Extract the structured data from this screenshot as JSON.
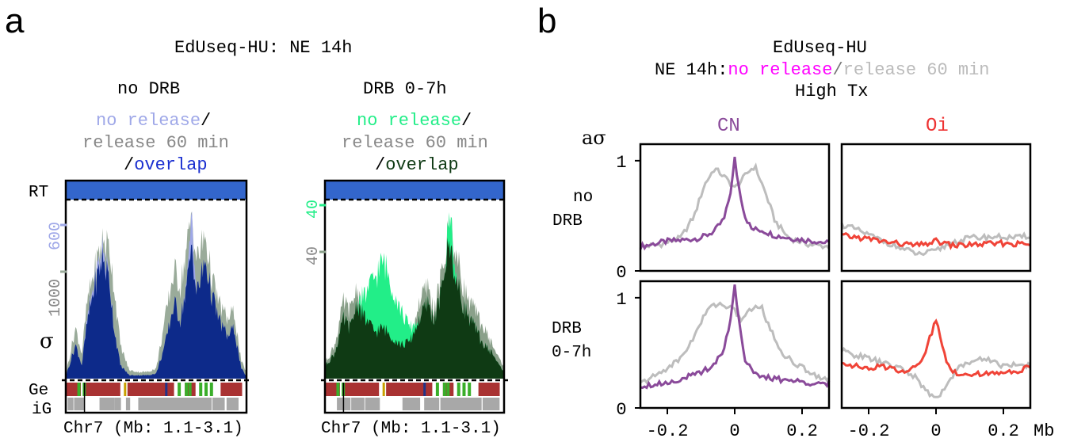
{
  "panel_a": {
    "letter": "a",
    "title": "EdUseq-HU: NE 14h",
    "left": {
      "condition": "no DRB",
      "legend_no_release": "no release",
      "legend_sep1": "/",
      "legend_release": "release 60 min",
      "legend_sep2": "/",
      "legend_overlap": "overlap",
      "tick_top": "600",
      "tick_bottom": "1000"
    },
    "right": {
      "condition": "DRB 0-7h",
      "legend_no_release": "no release",
      "legend_sep1": "/",
      "legend_release": "release 60 min",
      "legend_sep2": "/",
      "legend_overlap": "overlap",
      "tick_top": "40",
      "tick_bottom": "40"
    },
    "row_label_rt": "RT",
    "row_label_sigma": "σ",
    "row_label_ge": "Ge",
    "row_label_ig": "iG",
    "xlabel": "Chr7 (Mb: 1.1-3.1)",
    "colors": {
      "rt_bar": "#3366cc",
      "left_no_release": "#9fa8e8",
      "left_release": "#9aab9a",
      "left_overlap": "#0d2a8a",
      "right_no_release": "#22ee88",
      "right_release": "#8aa08a",
      "right_overlap": "#0f3a14",
      "gene_red": "#a93232",
      "gene_green": "#3aae2a",
      "gene_gray": "#a8a8a8"
    }
  },
  "panel_b": {
    "letter": "b",
    "title": "EdUseq-HU",
    "subtitle_prefix": "NE 14h:",
    "subtitle_no_release": "no release",
    "subtitle_sep": "/",
    "subtitle_release": "release 60 min",
    "subtitle_line3": "High Tx",
    "ylabel": "aσ",
    "col_cn": "CN",
    "col_oi": "Oi",
    "row1_line1": "no",
    "row1_line2": "DRB",
    "row2_line1": "DRB",
    "row2_line2": "0-7h",
    "x_unit": "Mb",
    "colors": {
      "cn_line": "#8a4a9a",
      "oi_line": "#f04438",
      "release_line": "#bdbdbd",
      "no_release_text": "#ff00ff",
      "release_text": "#bbbbbb",
      "cn_title": "#8a4a9a",
      "oi_title": "#ee3333"
    }
  },
  "chart_data": [
    {
      "type": "area",
      "panel": "a-left",
      "title": "no DRB",
      "xlabel": "Chr7 (Mb: 1.1-3.1)",
      "x_range": [
        1.1,
        3.1
      ],
      "series": [
        {
          "name": "release 60 min",
          "x": [
            1.1,
            1.2,
            1.27,
            1.33,
            1.4,
            1.5,
            1.58,
            1.63,
            1.7,
            1.8,
            1.9,
            2.0,
            2.1,
            2.2,
            2.3,
            2.37,
            2.45,
            2.5,
            2.55,
            2.65,
            2.72,
            2.8,
            2.9,
            2.97,
            3.05,
            3.1
          ],
          "values": [
            0.05,
            0.3,
            0.15,
            0.45,
            0.62,
            0.82,
            0.78,
            0.55,
            0.2,
            0.05,
            0.04,
            0.04,
            0.06,
            0.35,
            0.65,
            0.55,
            0.8,
            0.98,
            0.7,
            0.85,
            0.6,
            0.45,
            0.35,
            0.4,
            0.1,
            0.05
          ]
        },
        {
          "name": "no release",
          "x": [
            1.1,
            1.2,
            1.27,
            1.33,
            1.4,
            1.5,
            1.58,
            1.63,
            1.7,
            1.8,
            1.9,
            2.0,
            2.1,
            2.2,
            2.3,
            2.37,
            2.45,
            2.5,
            2.55,
            2.65,
            2.72,
            2.8,
            2.9,
            2.97,
            3.05,
            3.1
          ],
          "values": [
            0.03,
            0.2,
            0.08,
            0.35,
            0.55,
            0.78,
            0.6,
            0.3,
            0.08,
            0.02,
            0.02,
            0.02,
            0.03,
            0.2,
            0.45,
            0.35,
            0.6,
            1.0,
            0.5,
            0.7,
            0.5,
            0.35,
            0.25,
            0.3,
            0.06,
            0.02
          ]
        },
        {
          "name": "overlap",
          "x": [
            1.1,
            1.2,
            1.27,
            1.33,
            1.4,
            1.5,
            1.58,
            1.63,
            1.7,
            1.8,
            1.9,
            2.0,
            2.1,
            2.2,
            2.3,
            2.37,
            2.45,
            2.5,
            2.55,
            2.65,
            2.72,
            2.8,
            2.9,
            2.97,
            3.05,
            3.1
          ],
          "values": [
            0.03,
            0.2,
            0.08,
            0.33,
            0.52,
            0.72,
            0.58,
            0.3,
            0.08,
            0.02,
            0.02,
            0.02,
            0.03,
            0.2,
            0.45,
            0.35,
            0.58,
            0.8,
            0.5,
            0.7,
            0.5,
            0.35,
            0.25,
            0.3,
            0.06,
            0.02
          ]
        }
      ]
    },
    {
      "type": "area",
      "panel": "a-right",
      "title": "DRB 0-7h",
      "xlabel": "Chr7 (Mb: 1.1-3.1)",
      "x_range": [
        1.1,
        3.1
      ],
      "series": [
        {
          "name": "release 60 min",
          "x": [
            1.1,
            1.2,
            1.3,
            1.38,
            1.45,
            1.55,
            1.65,
            1.75,
            1.85,
            1.95,
            2.05,
            2.15,
            2.25,
            2.32,
            2.4,
            2.45,
            2.5,
            2.58,
            2.68,
            2.78,
            2.88,
            2.98,
            3.05,
            3.1
          ],
          "values": [
            0.1,
            0.2,
            0.45,
            0.4,
            0.55,
            0.35,
            0.28,
            0.3,
            0.25,
            0.2,
            0.22,
            0.45,
            0.55,
            0.4,
            0.6,
            0.75,
            0.95,
            0.7,
            0.5,
            0.4,
            0.3,
            0.2,
            0.12,
            0.08
          ]
        },
        {
          "name": "no release",
          "x": [
            1.1,
            1.2,
            1.3,
            1.38,
            1.45,
            1.55,
            1.65,
            1.75,
            1.85,
            1.95,
            2.05,
            2.15,
            2.25,
            2.32,
            2.4,
            2.45,
            2.5,
            2.58,
            2.68,
            2.78,
            2.88,
            2.98,
            3.05,
            3.1
          ],
          "values": [
            0.08,
            0.15,
            0.35,
            0.3,
            0.45,
            0.5,
            0.6,
            0.7,
            0.55,
            0.4,
            0.3,
            0.35,
            0.45,
            0.35,
            0.5,
            0.7,
            1.0,
            0.55,
            0.4,
            0.3,
            0.2,
            0.15,
            0.08,
            0.05
          ]
        },
        {
          "name": "overlap",
          "x": [
            1.1,
            1.2,
            1.3,
            1.38,
            1.45,
            1.55,
            1.65,
            1.75,
            1.85,
            1.95,
            2.05,
            2.15,
            2.25,
            2.32,
            2.4,
            2.45,
            2.5,
            2.58,
            2.68,
            2.78,
            2.88,
            2.98,
            3.05,
            3.1
          ],
          "values": [
            0.08,
            0.15,
            0.35,
            0.3,
            0.45,
            0.35,
            0.28,
            0.3,
            0.25,
            0.2,
            0.22,
            0.35,
            0.45,
            0.35,
            0.5,
            0.7,
            0.8,
            0.55,
            0.4,
            0.3,
            0.2,
            0.15,
            0.08,
            0.05
          ]
        }
      ]
    },
    {
      "type": "line",
      "panel": "b-no DRB-CN",
      "xlim": [
        -0.28,
        0.28
      ],
      "ylim": [
        0,
        1.15
      ],
      "series": [
        {
          "name": "no release",
          "x": [
            -0.28,
            -0.2,
            -0.15,
            -0.1,
            -0.06,
            -0.03,
            -0.01,
            0,
            0.01,
            0.03,
            0.05,
            0.08,
            0.12,
            0.18,
            0.24,
            0.28
          ],
          "values": [
            0.22,
            0.27,
            0.28,
            0.3,
            0.36,
            0.48,
            0.75,
            1.02,
            0.8,
            0.5,
            0.38,
            0.37,
            0.32,
            0.29,
            0.27,
            0.25
          ]
        },
        {
          "name": "release 60 min",
          "x": [
            -0.28,
            -0.22,
            -0.16,
            -0.12,
            -0.09,
            -0.06,
            -0.04,
            -0.02,
            0,
            0.02,
            0.04,
            0.06,
            0.09,
            0.12,
            0.16,
            0.22,
            0.28
          ],
          "values": [
            0.22,
            0.24,
            0.3,
            0.5,
            0.78,
            0.93,
            0.88,
            0.82,
            0.75,
            0.82,
            0.9,
            0.95,
            0.72,
            0.45,
            0.3,
            0.24,
            0.22
          ]
        }
      ]
    },
    {
      "type": "line",
      "panel": "b-no DRB-Oi",
      "xlim": [
        -0.28,
        0.28
      ],
      "ylim": [
        0,
        1.15
      ],
      "series": [
        {
          "name": "no release",
          "x": [
            -0.28,
            -0.2,
            -0.12,
            -0.05,
            0,
            0.05,
            0.12,
            0.2,
            0.28
          ],
          "values": [
            0.32,
            0.29,
            0.25,
            0.23,
            0.27,
            0.23,
            0.24,
            0.25,
            0.24
          ]
        },
        {
          "name": "release 60 min",
          "x": [
            -0.28,
            -0.24,
            -0.18,
            -0.1,
            -0.05,
            0,
            0.04,
            0.1,
            0.18,
            0.24,
            0.28
          ],
          "values": [
            0.42,
            0.38,
            0.3,
            0.2,
            0.15,
            0.18,
            0.25,
            0.3,
            0.31,
            0.3,
            0.32
          ]
        }
      ]
    },
    {
      "type": "line",
      "panel": "b-DRB 0-7h-CN",
      "xlim": [
        -0.28,
        0.28
      ],
      "ylim": [
        0,
        1.15
      ],
      "series": [
        {
          "name": "no release",
          "x": [
            -0.28,
            -0.2,
            -0.15,
            -0.1,
            -0.06,
            -0.03,
            -0.01,
            0,
            0.01,
            0.03,
            0.06,
            0.1,
            0.16,
            0.22,
            0.28
          ],
          "values": [
            0.2,
            0.23,
            0.27,
            0.32,
            0.4,
            0.55,
            0.85,
            1.12,
            0.85,
            0.45,
            0.3,
            0.27,
            0.25,
            0.23,
            0.22
          ]
        },
        {
          "name": "release 60 min",
          "x": [
            -0.28,
            -0.22,
            -0.16,
            -0.12,
            -0.08,
            -0.05,
            -0.02,
            0,
            0.02,
            0.05,
            0.08,
            0.1,
            0.14,
            0.18,
            0.24,
            0.28
          ],
          "values": [
            0.22,
            0.32,
            0.45,
            0.65,
            0.9,
            0.95,
            0.92,
            0.88,
            0.8,
            0.9,
            0.92,
            0.75,
            0.5,
            0.4,
            0.3,
            0.25
          ]
        }
      ]
    },
    {
      "type": "line",
      "panel": "b-DRB 0-7h-Oi",
      "xlim": [
        -0.28,
        0.28
      ],
      "ylim": [
        0,
        1.15
      ],
      "series": [
        {
          "name": "no release",
          "x": [
            -0.28,
            -0.24,
            -0.2,
            -0.16,
            -0.12,
            -0.08,
            -0.04,
            -0.02,
            0,
            0.02,
            0.04,
            0.08,
            0.12,
            0.16,
            0.2,
            0.24,
            0.28
          ],
          "values": [
            0.42,
            0.38,
            0.35,
            0.38,
            0.35,
            0.33,
            0.45,
            0.62,
            0.8,
            0.55,
            0.35,
            0.3,
            0.32,
            0.3,
            0.34,
            0.33,
            0.38
          ]
        },
        {
          "name": "release 60 min",
          "x": [
            -0.28,
            -0.24,
            -0.2,
            -0.15,
            -0.1,
            -0.06,
            -0.03,
            0,
            0.03,
            0.06,
            0.1,
            0.15,
            0.2,
            0.25,
            0.28
          ],
          "values": [
            0.52,
            0.48,
            0.45,
            0.4,
            0.35,
            0.28,
            0.15,
            0.08,
            0.2,
            0.35,
            0.42,
            0.45,
            0.38,
            0.4,
            0.38
          ]
        }
      ]
    }
  ],
  "axes_b": {
    "y_ticks": [
      {
        "v": 0,
        "label": "0"
      },
      {
        "v": 1,
        "label": "1"
      }
    ],
    "x_ticks": [
      {
        "v": -0.2,
        "label": "-0.2"
      },
      {
        "v": 0,
        "label": "0"
      },
      {
        "v": 0.2,
        "label": "0.2"
      }
    ]
  }
}
